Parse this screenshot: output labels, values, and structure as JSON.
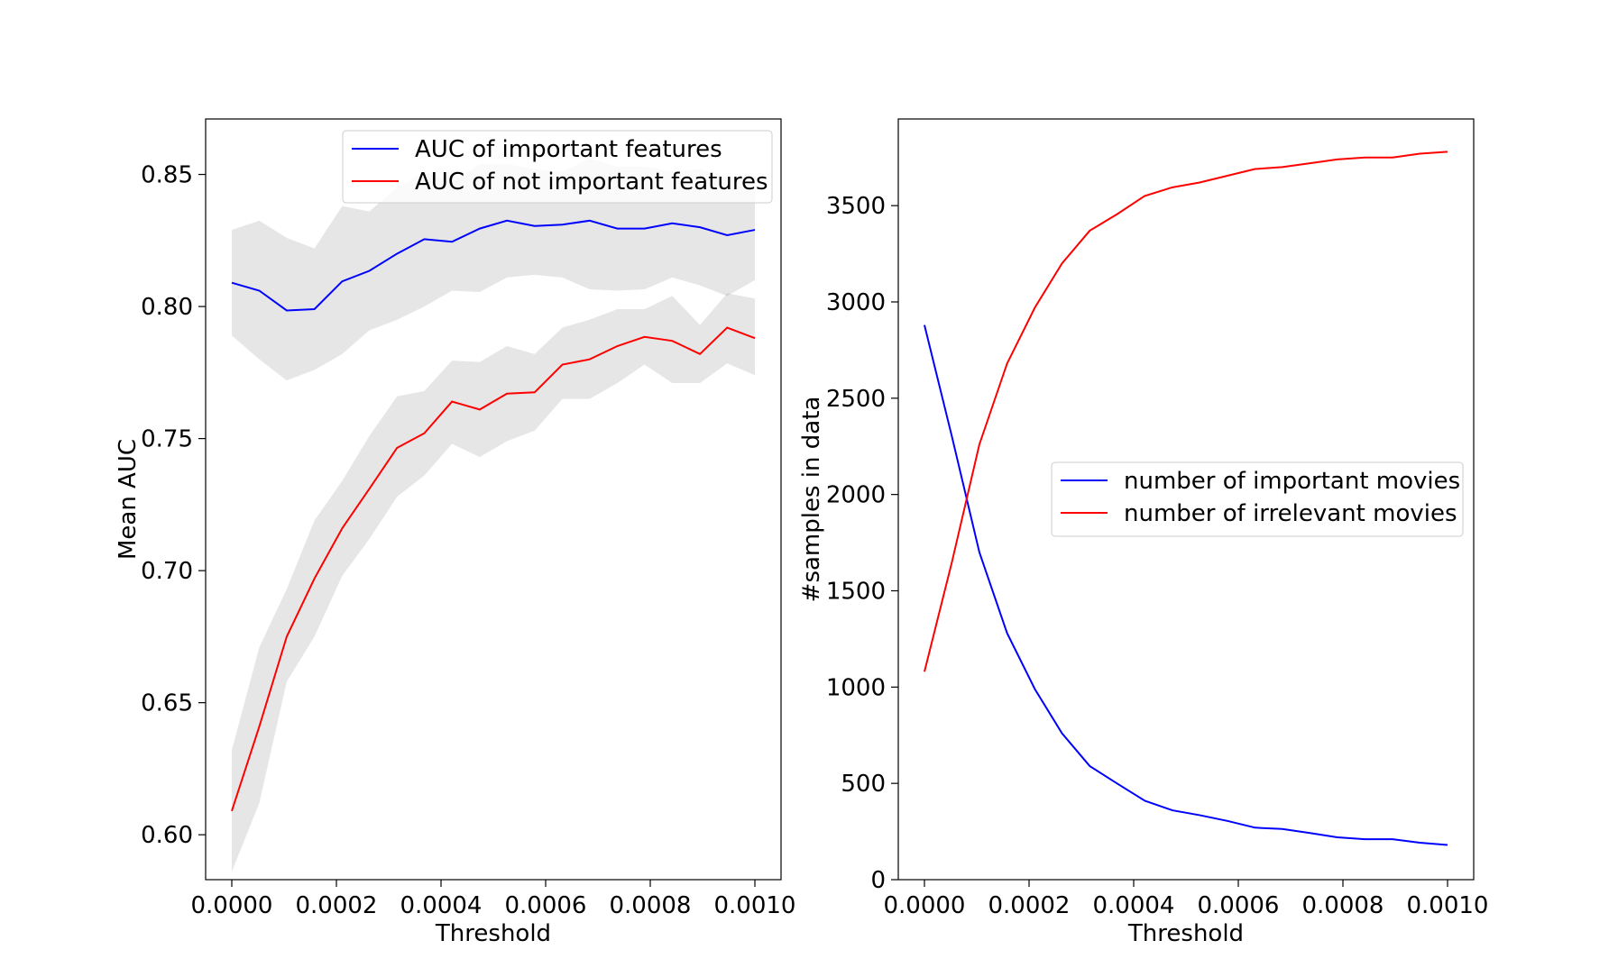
{
  "chart_data": [
    {
      "type": "line",
      "xlabel": "Threshold",
      "ylabel": "Mean AUC",
      "xlim": [
        -5e-05,
        0.00105
      ],
      "ylim": [
        0.583,
        0.871
      ],
      "xticks": [
        0.0,
        0.0002,
        0.0004,
        0.0006,
        0.0008,
        0.001
      ],
      "xtick_labels": [
        "0.0000",
        "0.0002",
        "0.0004",
        "0.0006",
        "0.0008",
        "0.0010"
      ],
      "yticks": [
        0.6,
        0.65,
        0.7,
        0.75,
        0.8,
        0.85
      ],
      "ytick_labels": [
        "0.60",
        "0.65",
        "0.70",
        "0.75",
        "0.80",
        "0.85"
      ],
      "grid": false,
      "legend_position": "top-right",
      "x": [
        0.0,
        5.26e-05,
        0.000105,
        0.000158,
        0.000211,
        0.000263,
        0.000316,
        0.000368,
        0.000421,
        0.000474,
        0.000526,
        0.000579,
        0.000632,
        0.000684,
        0.000737,
        0.000789,
        0.000842,
        0.000895,
        0.000947,
        0.001
      ],
      "series": [
        {
          "name": "AUC of important features",
          "color": "#0000ff",
          "values": [
            0.809,
            0.806,
            0.7985,
            0.799,
            0.8095,
            0.8135,
            0.82,
            0.8255,
            0.8245,
            0.8295,
            0.8325,
            0.8305,
            0.831,
            0.8325,
            0.8295,
            0.8295,
            0.8315,
            0.83,
            0.827,
            0.829
          ],
          "band_lower": [
            0.789,
            0.78,
            0.772,
            0.776,
            0.782,
            0.791,
            0.795,
            0.8,
            0.806,
            0.8055,
            0.811,
            0.812,
            0.811,
            0.8065,
            0.806,
            0.8065,
            0.811,
            0.808,
            0.804,
            0.81
          ],
          "band_upper": [
            0.829,
            0.8325,
            0.826,
            0.822,
            0.838,
            0.836,
            0.845,
            0.851,
            0.847,
            0.854,
            0.854,
            0.852,
            0.851,
            0.856,
            0.853,
            0.853,
            0.851,
            0.852,
            0.849,
            0.848
          ]
        },
        {
          "color": "#ff0000",
          "name": "AUC of not important features",
          "values": [
            0.609,
            0.641,
            0.675,
            0.697,
            0.716,
            0.731,
            0.7465,
            0.752,
            0.764,
            0.761,
            0.767,
            0.7675,
            0.778,
            0.78,
            0.785,
            0.7885,
            0.787,
            0.782,
            0.792,
            0.788
          ],
          "band_lower": [
            0.586,
            0.612,
            0.658,
            0.675,
            0.698,
            0.712,
            0.728,
            0.736,
            0.748,
            0.743,
            0.749,
            0.753,
            0.765,
            0.765,
            0.771,
            0.778,
            0.771,
            0.771,
            0.7785,
            0.774
          ],
          "band_upper": [
            0.632,
            0.671,
            0.693,
            0.719,
            0.734,
            0.751,
            0.766,
            0.768,
            0.7795,
            0.779,
            0.785,
            0.782,
            0.792,
            0.795,
            0.799,
            0.799,
            0.804,
            0.793,
            0.805,
            0.803
          ]
        }
      ]
    },
    {
      "type": "line",
      "xlabel": "Threshold",
      "ylabel": "#samples in data",
      "xlim": [
        -5e-05,
        0.00105
      ],
      "ylim": [
        0,
        3950
      ],
      "xticks": [
        0.0,
        0.0002,
        0.0004,
        0.0006,
        0.0008,
        0.001
      ],
      "xtick_labels": [
        "0.0000",
        "0.0002",
        "0.0004",
        "0.0006",
        "0.0008",
        "0.0010"
      ],
      "yticks": [
        0,
        500,
        1000,
        1500,
        2000,
        2500,
        3000,
        3500
      ],
      "ytick_labels": [
        "0",
        "500",
        "1000",
        "1500",
        "2000",
        "2500",
        "3000",
        "3500"
      ],
      "grid": false,
      "legend_position": "center-right",
      "x": [
        0.0,
        5.26e-05,
        0.000105,
        0.000158,
        0.000211,
        0.000263,
        0.000316,
        0.000368,
        0.000421,
        0.000474,
        0.000526,
        0.000579,
        0.000632,
        0.000684,
        0.000737,
        0.000789,
        0.000842,
        0.000895,
        0.000947,
        0.001
      ],
      "series": [
        {
          "name": "number of important movies",
          "color": "#0000ff",
          "values": [
            2880,
            2300,
            1700,
            1280,
            990,
            760,
            590,
            500,
            410,
            360,
            335,
            305,
            270,
            263,
            242,
            220,
            210,
            210,
            192,
            180
          ]
        },
        {
          "name": "number of irrelevant movies",
          "color": "#ff0000",
          "values": [
            1080,
            1650,
            2260,
            2680,
            2970,
            3200,
            3370,
            3455,
            3550,
            3595,
            3620,
            3655,
            3690,
            3700,
            3720,
            3740,
            3750,
            3750,
            3770,
            3780
          ]
        }
      ]
    }
  ]
}
